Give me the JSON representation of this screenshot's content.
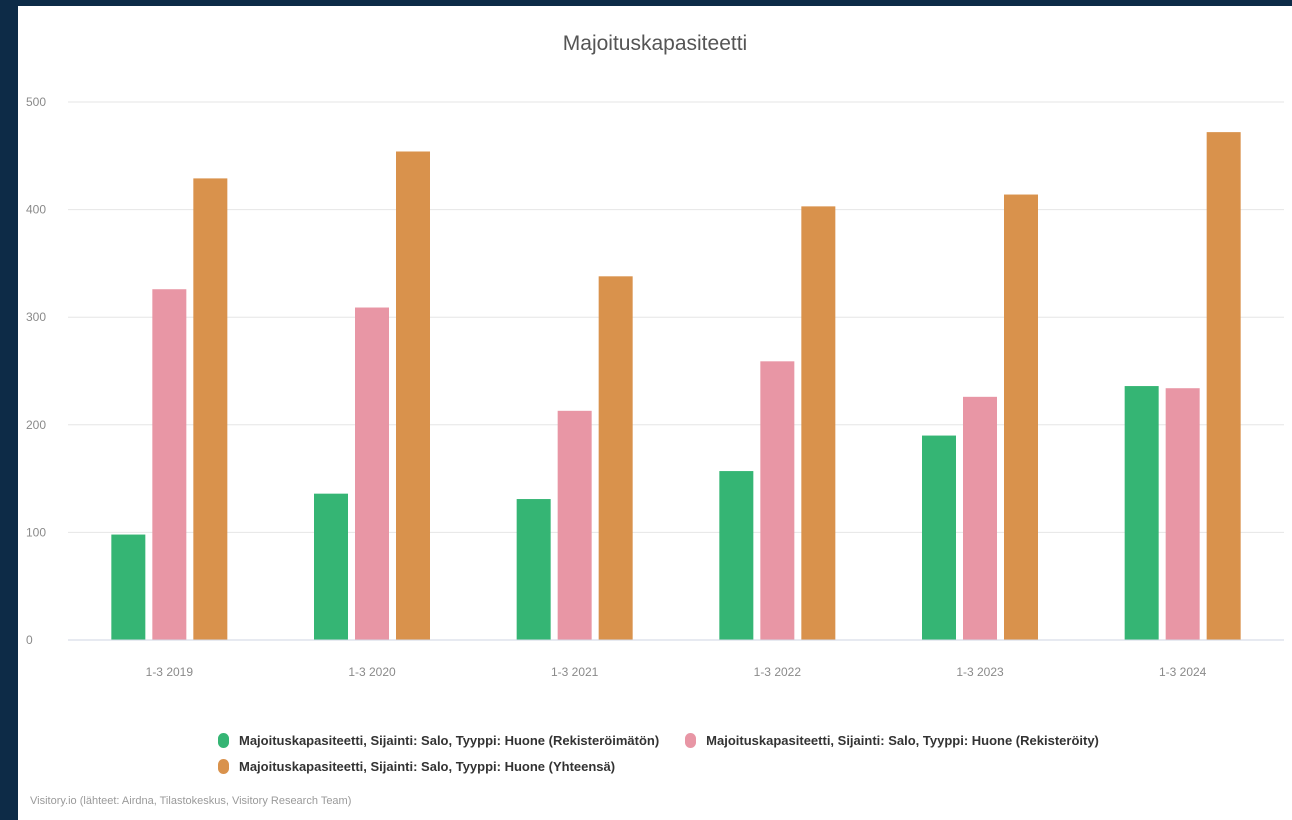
{
  "chart_data": {
    "type": "bar",
    "title": "Majoituskapasiteetti",
    "xlabel": "",
    "ylabel": "",
    "categories": [
      "1-3 2019",
      "1-3 2020",
      "1-3 2021",
      "1-3 2022",
      "1-3 2023",
      "1-3 2024"
    ],
    "yticks": [
      "0",
      "100",
      "200",
      "300",
      "400",
      "500"
    ],
    "ylim": [
      0,
      500
    ],
    "grid": true,
    "legend_position": "bottom",
    "series": [
      {
        "name": "Majoituskapasiteetti, Sijainti: Salo, Tyyppi: Huone (Rekisteröimätön)",
        "color": "#35b574",
        "values": [
          98,
          136,
          131,
          157,
          190,
          236
        ]
      },
      {
        "name": "Majoituskapasiteetti, Sijainti: Salo, Tyyppi: Huone (Rekisteröity)",
        "color": "#e896a5",
        "values": [
          326,
          309,
          213,
          259,
          226,
          234
        ]
      },
      {
        "name": "Majoituskapasiteetti, Sijainti: Salo, Tyyppi: Huone (Yhteensä)",
        "color": "#d9924c",
        "values": [
          429,
          454,
          338,
          403,
          414,
          472
        ]
      }
    ]
  },
  "credits": "Visitory.io (lähteet: Airdna, Tilastokeskus, Visitory Research Team)"
}
